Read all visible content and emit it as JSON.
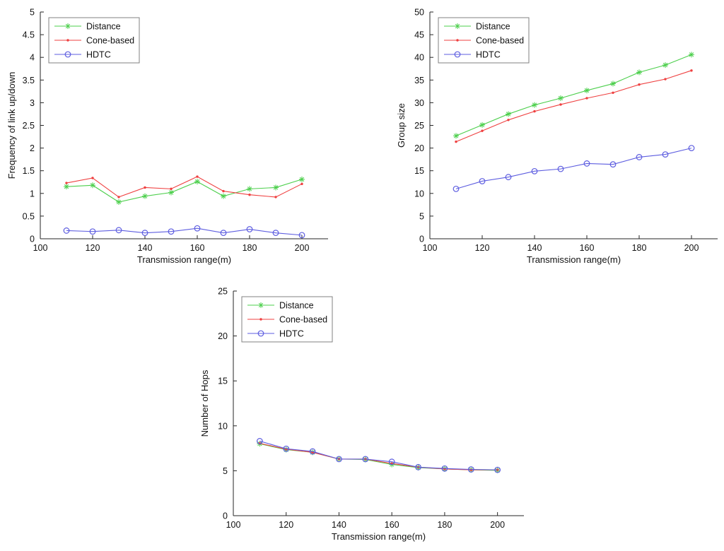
{
  "figure": {
    "background": "#ffffff",
    "axis_color": "#262626",
    "text_color": "#111111",
    "legend_border_color": "#808080",
    "legend_fill": "#ffffff"
  },
  "chart_data": [
    {
      "type": "line",
      "title": "",
      "xlabel": "Transmission range(m)",
      "ylabel": "Frequency of link up/down",
      "xlim": [
        100,
        210
      ],
      "ylim": [
        0,
        5
      ],
      "xticks": [
        100,
        120,
        140,
        160,
        180,
        200
      ],
      "yticks": [
        0,
        0.5,
        1,
        1.5,
        2,
        2.5,
        3,
        3.5,
        4,
        4.5,
        5
      ],
      "grid": false,
      "legend_position": "top-left",
      "x": [
        110,
        120,
        130,
        140,
        150,
        160,
        170,
        180,
        190,
        200
      ],
      "series": [
        {
          "name": "Distance",
          "color": "#4ccf4c",
          "marker": "asterisk",
          "values": [
            1.15,
            1.18,
            0.81,
            0.94,
            1.02,
            1.26,
            0.94,
            1.1,
            1.13,
            1.31
          ]
        },
        {
          "name": "Cone-based",
          "color": "#ef4040",
          "marker": "dot",
          "values": [
            1.23,
            1.34,
            0.92,
            1.13,
            1.1,
            1.37,
            1.05,
            0.97,
            0.92,
            1.21
          ]
        },
        {
          "name": "HDTC",
          "color": "#5d5de0",
          "marker": "circle",
          "values": [
            0.18,
            0.16,
            0.19,
            0.13,
            0.16,
            0.23,
            0.13,
            0.21,
            0.13,
            0.08
          ]
        }
      ]
    },
    {
      "type": "line",
      "title": "",
      "xlabel": "Transmission range(m)",
      "ylabel": "Group size",
      "xlim": [
        100,
        210
      ],
      "ylim": [
        0,
        50
      ],
      "xticks": [
        100,
        120,
        140,
        160,
        180,
        200
      ],
      "yticks": [
        0,
        5,
        10,
        15,
        20,
        25,
        30,
        35,
        40,
        45,
        50
      ],
      "grid": false,
      "legend_position": "top-left",
      "x": [
        110,
        120,
        130,
        140,
        150,
        160,
        170,
        180,
        190,
        200
      ],
      "series": [
        {
          "name": "Distance",
          "color": "#4ccf4c",
          "marker": "asterisk",
          "values": [
            22.7,
            25.1,
            27.5,
            29.5,
            31.0,
            32.7,
            34.2,
            36.7,
            38.3,
            40.6
          ]
        },
        {
          "name": "Cone-based",
          "color": "#ef4040",
          "marker": "dot",
          "values": [
            21.4,
            23.8,
            26.2,
            28.1,
            29.6,
            31.0,
            32.2,
            34.0,
            35.2,
            37.1
          ]
        },
        {
          "name": "HDTC",
          "color": "#5d5de0",
          "marker": "circle",
          "values": [
            11.0,
            12.7,
            13.6,
            14.9,
            15.4,
            16.6,
            16.4,
            18.0,
            18.6,
            20.0
          ]
        }
      ]
    },
    {
      "type": "line",
      "title": "",
      "xlabel": "Transmission range(m)",
      "ylabel": "Number of Hops",
      "xlim": [
        100,
        210
      ],
      "ylim": [
        0,
        25
      ],
      "xticks": [
        100,
        120,
        140,
        160,
        180,
        200
      ],
      "yticks": [
        0,
        5,
        10,
        15,
        20,
        25
      ],
      "grid": false,
      "legend_position": "top-left",
      "x": [
        110,
        120,
        130,
        140,
        150,
        160,
        170,
        180,
        190,
        200
      ],
      "series": [
        {
          "name": "Distance",
          "color": "#4ccf4c",
          "marker": "asterisk",
          "values": [
            8.0,
            7.35,
            7.05,
            6.3,
            6.25,
            5.7,
            5.35,
            5.2,
            5.1,
            5.05
          ]
        },
        {
          "name": "Cone-based",
          "color": "#ef4040",
          "marker": "dot",
          "values": [
            8.05,
            7.4,
            7.05,
            6.3,
            6.3,
            5.8,
            5.4,
            5.2,
            5.1,
            5.1
          ]
        },
        {
          "name": "HDTC",
          "color": "#5d5de0",
          "marker": "circle",
          "values": [
            8.3,
            7.45,
            7.15,
            6.3,
            6.3,
            6.0,
            5.4,
            5.25,
            5.15,
            5.1
          ]
        }
      ]
    }
  ]
}
